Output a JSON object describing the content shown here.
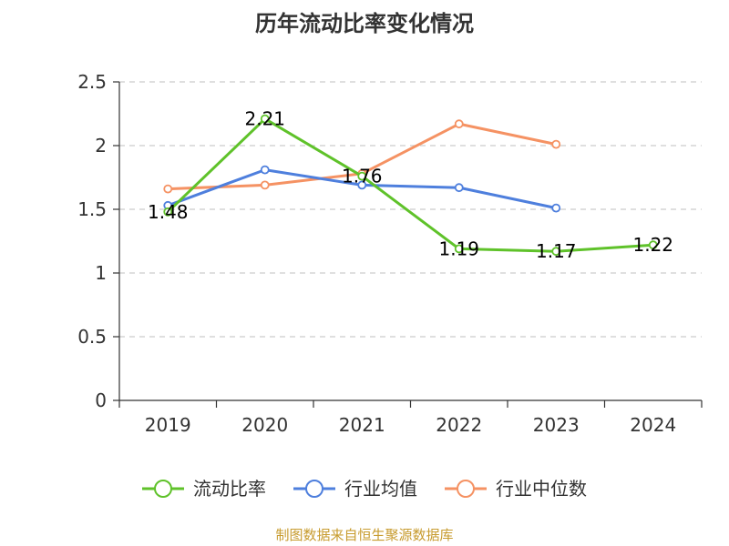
{
  "chart_data": {
    "type": "line",
    "title": "历年流动比率变化情况",
    "xlabel": "",
    "ylabel": "",
    "categories": [
      "2019",
      "2020",
      "2021",
      "2022",
      "2023",
      "2024"
    ],
    "ylim": [
      0,
      2.5
    ],
    "yticks": [
      0,
      0.5,
      1,
      1.5,
      2,
      2.5
    ],
    "ytick_labels": [
      "0",
      "0.5",
      "1",
      "1.5",
      "2",
      "2.5"
    ],
    "grid": "horizontal-dashed",
    "legend_position": "bottom",
    "series": [
      {
        "name": "流动比率",
        "color": "#5fc22a",
        "values": [
          1.48,
          2.21,
          1.76,
          1.19,
          1.17,
          1.22
        ],
        "data_labels": [
          "1.48",
          "2.21",
          "1.76",
          "1.19",
          "1.17",
          "1.22"
        ]
      },
      {
        "name": "行业均值",
        "color": "#4e7fdd",
        "values": [
          1.53,
          1.81,
          1.69,
          1.67,
          1.51,
          null
        ]
      },
      {
        "name": "行业中位数",
        "color": "#f59263",
        "values": [
          1.66,
          1.69,
          1.78,
          2.17,
          2.01,
          null
        ]
      }
    ]
  },
  "source_note": "制图数据来自恒生聚源数据库",
  "source_color": "#c79b2e"
}
